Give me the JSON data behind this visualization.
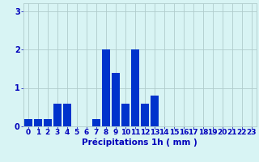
{
  "categories": [
    0,
    1,
    2,
    3,
    4,
    5,
    6,
    7,
    8,
    9,
    10,
    11,
    12,
    13,
    14,
    15,
    16,
    17,
    18,
    19,
    20,
    21,
    22,
    23
  ],
  "values": [
    0.2,
    0.2,
    0.2,
    0.6,
    0.6,
    0.0,
    0.0,
    0.2,
    2.0,
    1.4,
    0.6,
    2.0,
    0.6,
    0.8,
    0.0,
    0.0,
    0.0,
    0.0,
    0.0,
    0.0,
    0.0,
    0.0,
    0.0,
    0.0
  ],
  "bar_color": "#0033cc",
  "background_color": "#d8f4f4",
  "grid_color": "#b0cccc",
  "xlabel": "Précipitations 1h ( mm )",
  "ylim": [
    0,
    3.2
  ],
  "yticks": [
    0,
    1,
    2,
    3
  ],
  "xlabel_fontsize": 7.5,
  "tick_fontsize": 6.5,
  "tick_color": "#0000bb"
}
